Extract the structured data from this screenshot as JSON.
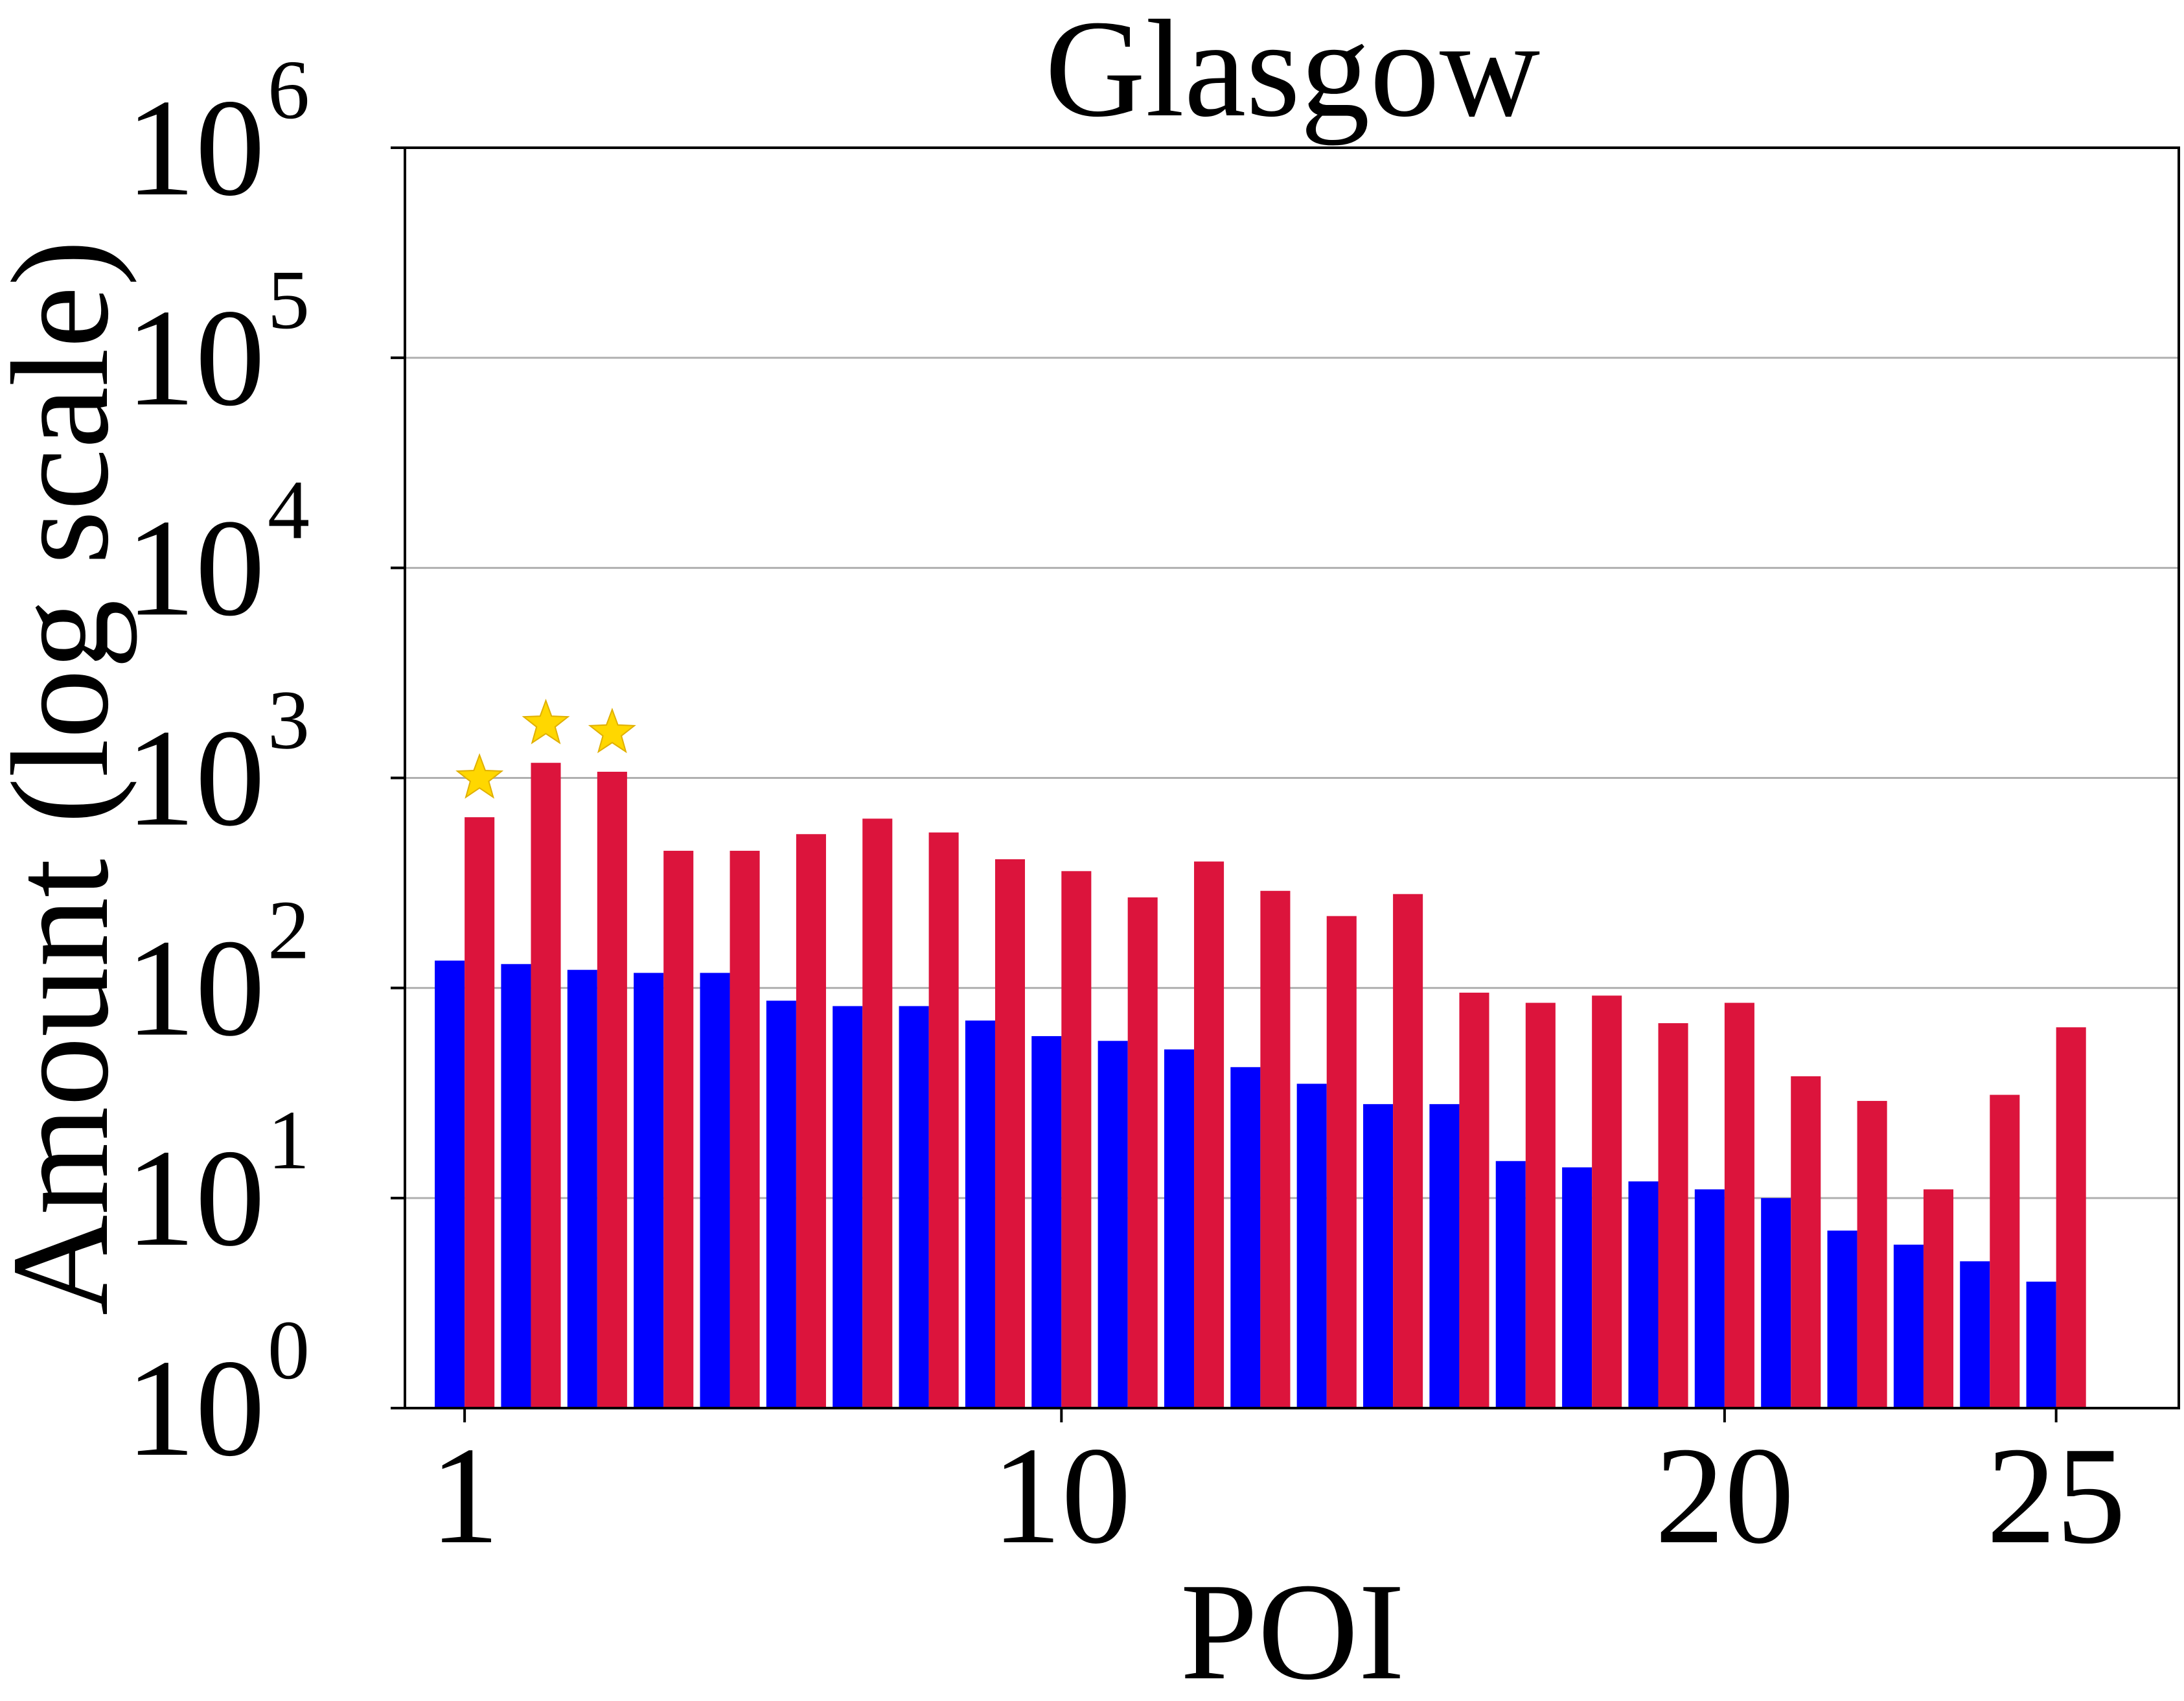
{
  "chart_data": {
    "type": "bar",
    "title": "Glasgow",
    "xlabel": "POI",
    "ylabel": "Amount (log scale)",
    "y_scale": "log",
    "ylim": [
      1,
      1000000
    ],
    "y_ticks": [
      {
        "base": "10",
        "exp": "0",
        "value": 1
      },
      {
        "base": "10",
        "exp": "1",
        "value": 10
      },
      {
        "base": "10",
        "exp": "2",
        "value": 100
      },
      {
        "base": "10",
        "exp": "3",
        "value": 1000
      },
      {
        "base": "10",
        "exp": "4",
        "value": 10000
      },
      {
        "base": "10",
        "exp": "5",
        "value": 100000
      },
      {
        "base": "10",
        "exp": "6",
        "value": 1000000
      }
    ],
    "x_ticks": [
      {
        "label": "1",
        "value": 1
      },
      {
        "label": "10",
        "value": 10
      },
      {
        "label": "20",
        "value": 20
      },
      {
        "label": "25",
        "value": 25
      }
    ],
    "xlim": [
      0.1,
      26.85
    ],
    "grid": "horizontal",
    "categories": [
      1,
      2,
      3,
      4,
      5,
      6,
      7,
      8,
      9,
      10,
      11,
      12,
      13,
      14,
      15,
      16,
      17,
      18,
      19,
      20,
      21,
      22,
      23,
      24,
      25
    ],
    "series": [
      {
        "color": "#0000ff",
        "values": [
          135,
          130,
          122,
          118,
          118,
          87,
          82,
          82,
          70,
          59,
          56,
          51,
          42,
          35,
          28,
          28,
          15,
          14,
          12,
          11,
          10,
          7,
          6,
          5,
          4
        ]
      },
      {
        "color": "#dc143c",
        "values": [
          650,
          1180,
          1070,
          450,
          450,
          540,
          640,
          550,
          410,
          360,
          270,
          400,
          290,
          220,
          280,
          95,
          85,
          92,
          68,
          85,
          38,
          29,
          11,
          31,
          65
        ]
      }
    ],
    "annotations": [
      {
        "type": "star",
        "color": "#ffd700",
        "category": 1,
        "series": 1
      },
      {
        "type": "star",
        "color": "#ffd700",
        "category": 2,
        "series": 1
      },
      {
        "type": "star",
        "color": "#ffd700",
        "category": 3,
        "series": 1
      }
    ]
  }
}
